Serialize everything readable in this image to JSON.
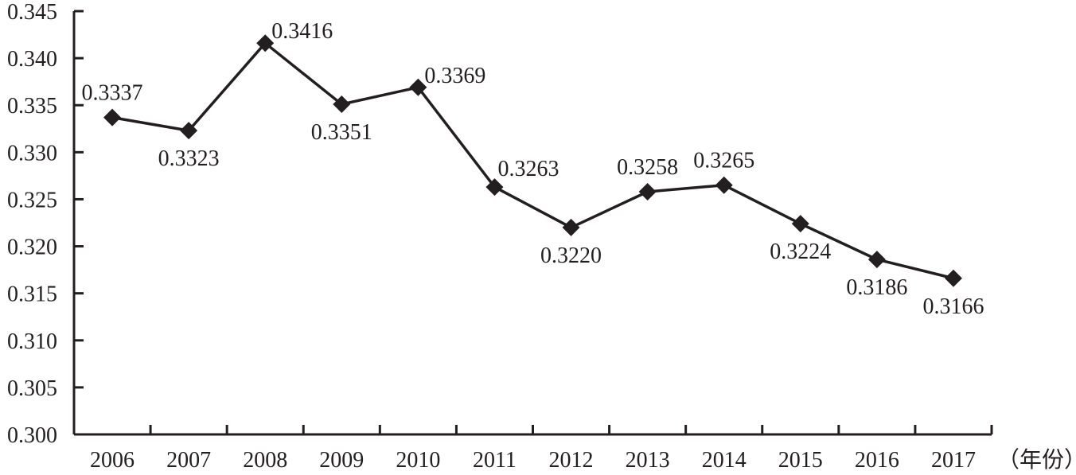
{
  "chart_data": {
    "type": "line",
    "title": "",
    "xlabel": "（年份）",
    "ylabel": "",
    "categories": [
      "2006",
      "2007",
      "2008",
      "2009",
      "2010",
      "2011",
      "2012",
      "2013",
      "2014",
      "2015",
      "2016",
      "2017"
    ],
    "series": [
      {
        "name": "",
        "marker": "diamond",
        "color": "#231f20",
        "values": [
          0.3337,
          0.3323,
          0.3416,
          0.3351,
          0.3369,
          0.3263,
          0.322,
          0.3258,
          0.3265,
          0.3224,
          0.3186,
          0.3166
        ],
        "labels": [
          "0.3337",
          "0.3323",
          "0.3416",
          "0.3351",
          "0.3369",
          "0.3263",
          "0.3220",
          "0.3258",
          "0.3265",
          "0.3224",
          "0.3186",
          "0.3166"
        ],
        "label_positions": [
          "above",
          "below",
          "right",
          "below",
          "right",
          "above-right",
          "below",
          "above",
          "above",
          "below",
          "below",
          "below"
        ]
      }
    ],
    "ylim": [
      0.3,
      0.345
    ],
    "yticks": [
      "0.300",
      "0.305",
      "0.310",
      "0.315",
      "0.320",
      "0.325",
      "0.330",
      "0.335",
      "0.340",
      "0.345"
    ],
    "grid": false,
    "legend": null
  }
}
